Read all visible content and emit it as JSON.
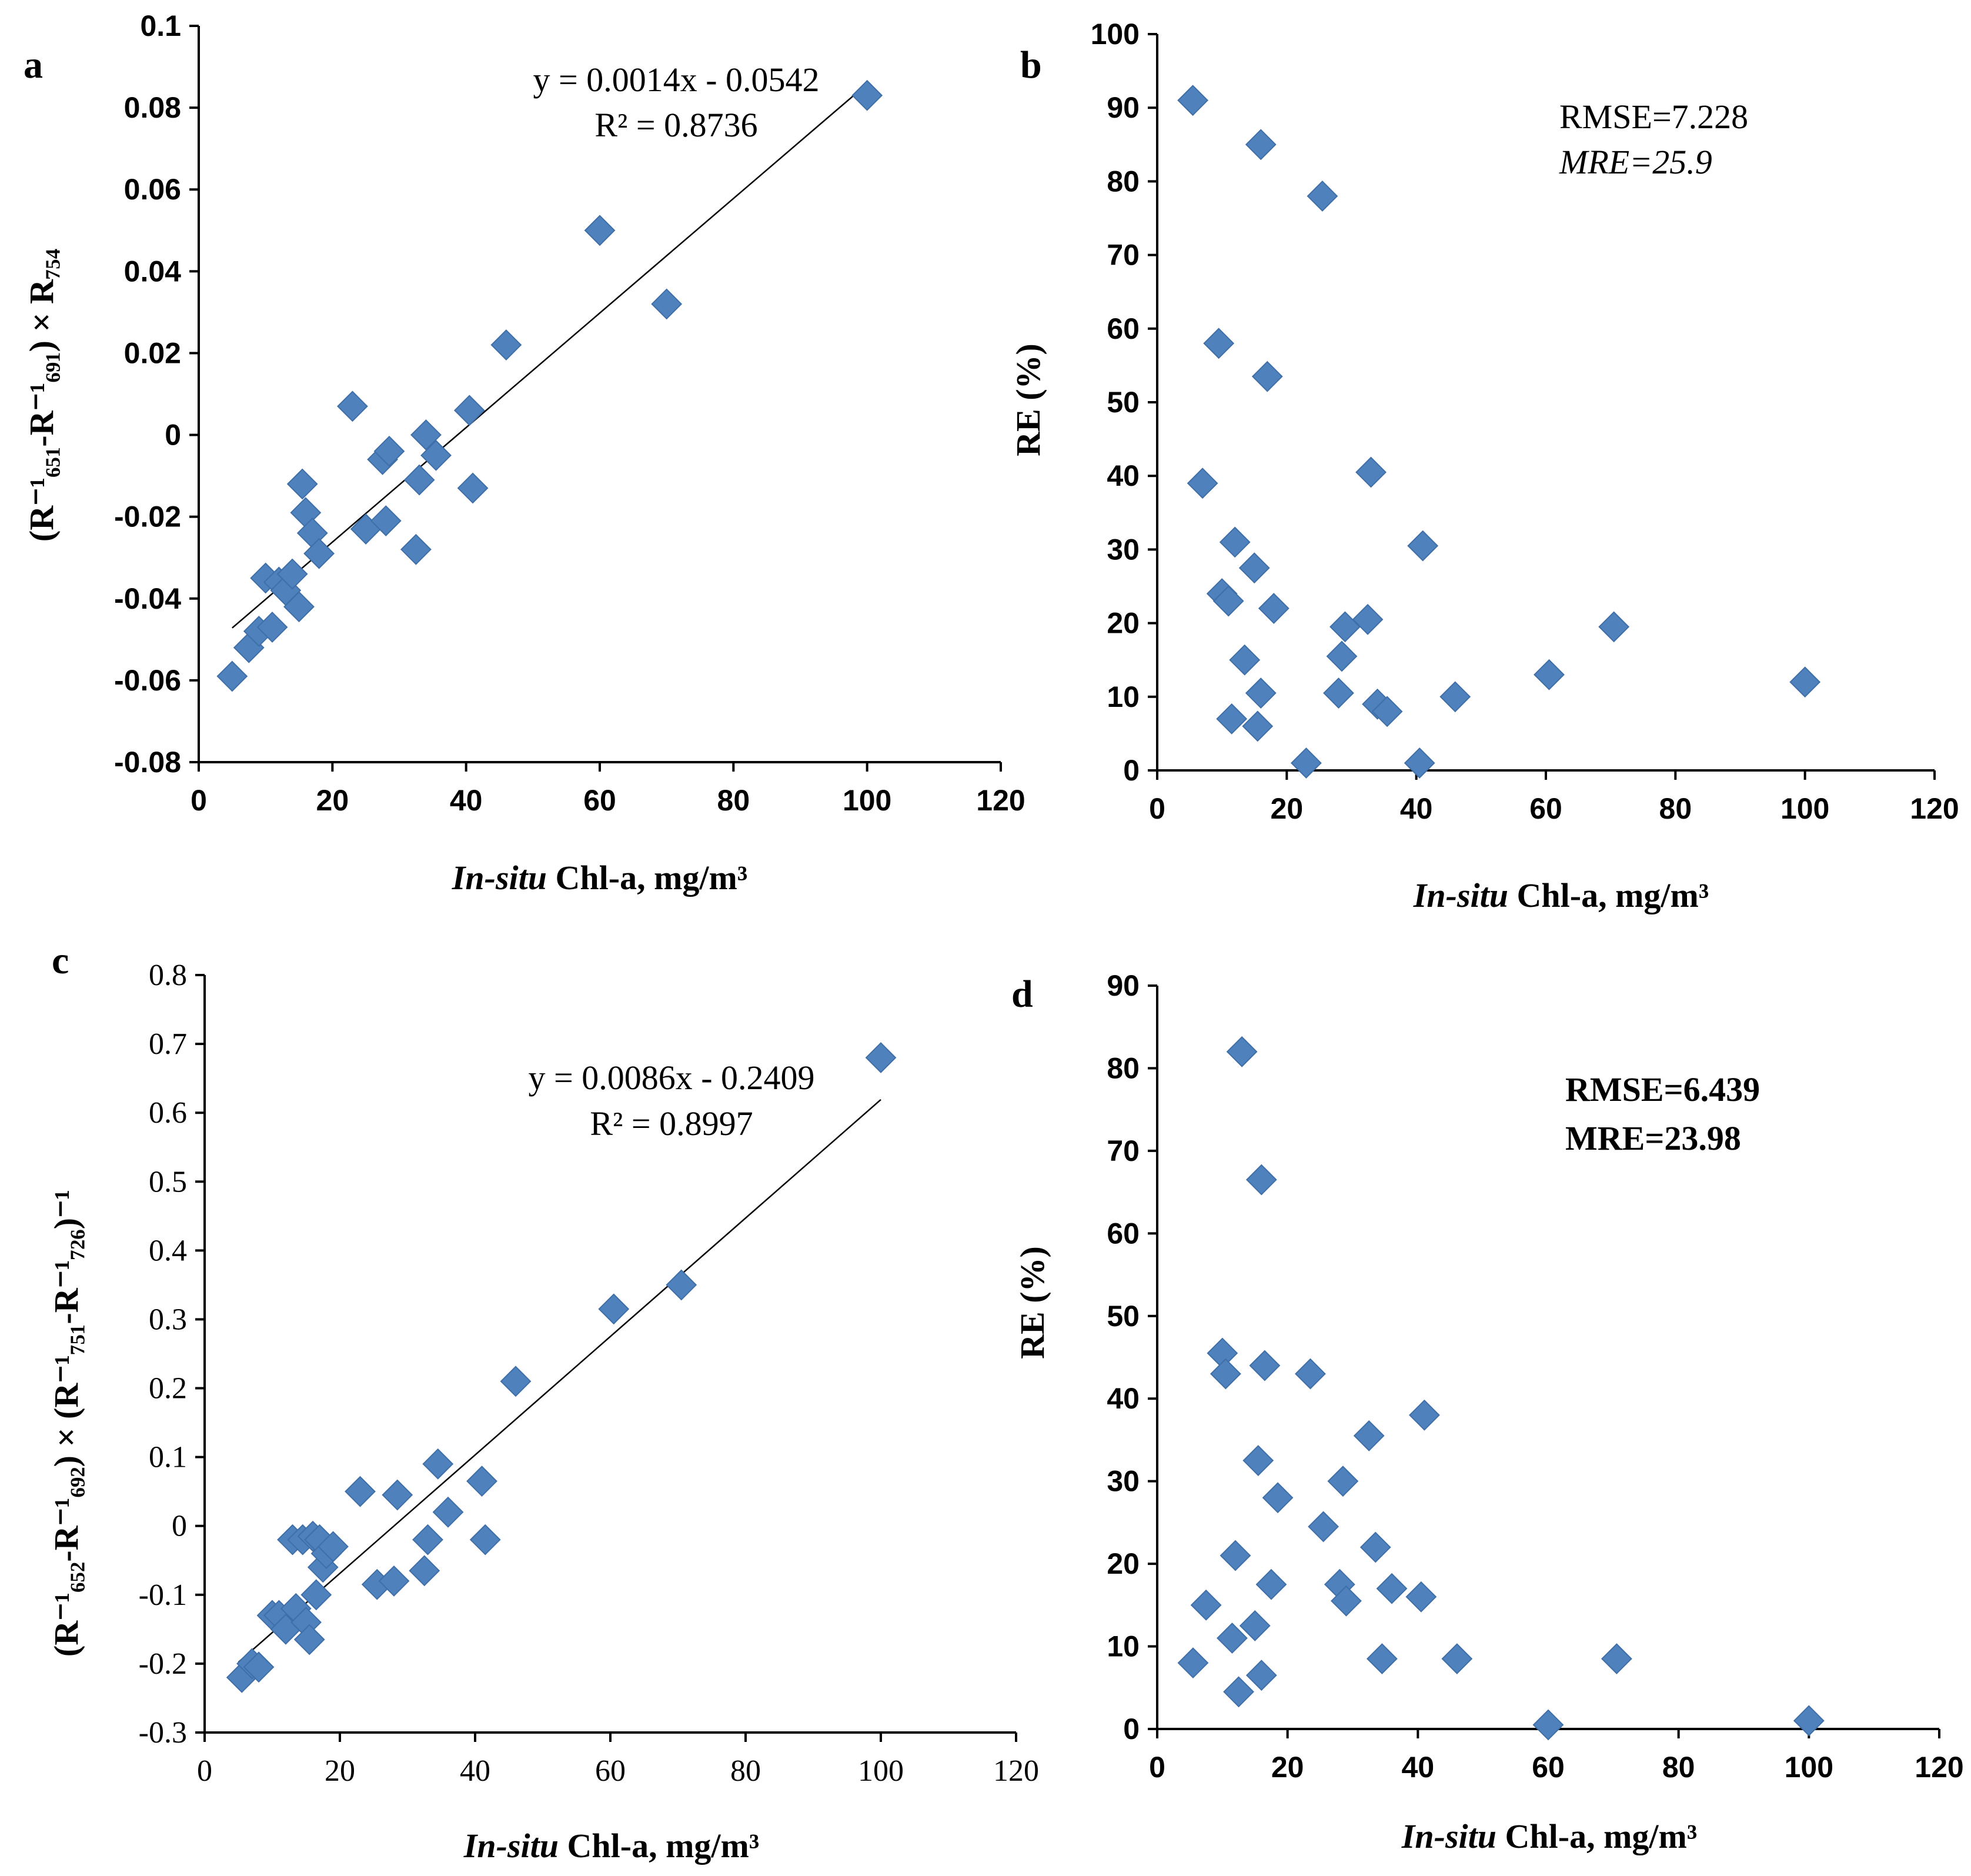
{
  "chart_data": [
    {
      "id": "a",
      "type": "scatter",
      "panel_label": "a",
      "xlabel_italic": "In-situ",
      "xlabel_rest": " Chl-a, mg/m³",
      "ylabel": "(R⁻¹₆₅₁-R⁻¹₆₉₁) × R₇₅₄",
      "xlim": [
        0,
        120
      ],
      "ylim": [
        -0.08,
        0.1
      ],
      "xticks": [
        0,
        20,
        40,
        60,
        80,
        100,
        120
      ],
      "yticks": [
        -0.08,
        -0.06,
        -0.04,
        -0.02,
        0,
        0.02,
        0.04,
        0.06,
        0.08,
        0.1
      ],
      "ytick_labels": [
        "-0.08",
        "-0.06",
        "-0.04",
        "-0.02",
        "0",
        "0.02",
        "0.04",
        "0.06",
        "0.08",
        "0.1"
      ],
      "equation": "y = 0.0014x - 0.0542",
      "r2": "R² = 0.8736",
      "trendline": {
        "slope": 0.0014,
        "intercept": -0.0542,
        "x_range": [
          5,
          100
        ]
      },
      "x": [
        5,
        7.5,
        9,
        10,
        11,
        12,
        13,
        14,
        15,
        15.5,
        16,
        17,
        18,
        23,
        25,
        27.5,
        28,
        28.5,
        32.5,
        33,
        34,
        35.5,
        40.5,
        41,
        46,
        60,
        70,
        100
      ],
      "y": [
        -0.059,
        -0.052,
        -0.048,
        -0.035,
        -0.047,
        -0.036,
        -0.038,
        -0.034,
        -0.042,
        -0.012,
        -0.019,
        -0.024,
        -0.029,
        0.007,
        -0.023,
        -0.006,
        -0.021,
        -0.004,
        -0.028,
        -0.011,
        0.0,
        -0.005,
        0.006,
        -0.013,
        0.022,
        0.05,
        0.032,
        0.083
      ]
    },
    {
      "id": "b",
      "type": "scatter",
      "panel_label": "b",
      "xlabel_italic": "In-situ",
      "xlabel_rest": " Chl-a, mg/m³",
      "ylabel": "RE (%)",
      "xlim": [
        0,
        120
      ],
      "ylim": [
        0,
        100
      ],
      "xticks": [
        0,
        20,
        40,
        60,
        80,
        100,
        120
      ],
      "yticks": [
        0,
        10,
        20,
        30,
        40,
        50,
        60,
        70,
        80,
        90,
        100
      ],
      "annotation_1": "RMSE=7.228",
      "annotation_2": "MRE=25.9",
      "x": [
        5.5,
        7,
        9.5,
        10,
        11,
        11.5,
        12,
        13.5,
        15,
        15.5,
        16,
        16,
        17,
        18,
        23,
        25.5,
        28,
        28.5,
        29,
        32.5,
        33,
        34,
        35.5,
        40.5,
        41,
        46,
        60.5,
        70.5,
        100
      ],
      "y": [
        91,
        39,
        58,
        24,
        23,
        7,
        31,
        15,
        27.5,
        6,
        10.5,
        85,
        53.5,
        22,
        1,
        78,
        10.5,
        15.5,
        19.5,
        20.5,
        40.5,
        9,
        8,
        1,
        30.5,
        10,
        13,
        19.5,
        12
      ]
    },
    {
      "id": "c",
      "type": "scatter",
      "panel_label": "c",
      "xlabel_italic": "In-situ",
      "xlabel_rest": " Chl-a, mg/m³",
      "ylabel": "(R⁻¹₆₅₂-R⁻¹₆₉₂) × (R⁻¹₇₅₁-R⁻¹₇₂₆)⁻¹",
      "xlim": [
        0,
        120
      ],
      "ylim": [
        -0.3,
        0.8
      ],
      "xticks": [
        0,
        20,
        40,
        60,
        80,
        100,
        120
      ],
      "yticks": [
        -0.3,
        -0.2,
        -0.1,
        0,
        0.1,
        0.2,
        0.3,
        0.4,
        0.5,
        0.6,
        0.7,
        0.8
      ],
      "ytick_labels": [
        "-0.3",
        "-0.2",
        "-0.1",
        "0",
        "0.1",
        "0.2",
        "0.3",
        "0.4",
        "0.5",
        "0.6",
        "0.7",
        "0.8"
      ],
      "equation": "y = 0.0086x - 0.2409",
      "r2": "R² = 0.8997",
      "trendline": {
        "slope": 0.0086,
        "intercept": -0.2409,
        "x_range": [
          5,
          100
        ]
      },
      "x": [
        5.5,
        7,
        8,
        10,
        11,
        12,
        13,
        13.5,
        14.5,
        15,
        15.5,
        16,
        16.5,
        17,
        17.5,
        18,
        19,
        23,
        25.5,
        28,
        28.5,
        32.5,
        33,
        34.5,
        36,
        41,
        41.5,
        46,
        60.5,
        70.5,
        100
      ],
      "y": [
        -0.22,
        -0.2,
        -0.205,
        -0.13,
        -0.13,
        -0.15,
        -0.02,
        -0.12,
        -0.02,
        -0.14,
        -0.165,
        -0.015,
        -0.1,
        -0.02,
        -0.06,
        -0.04,
        -0.03,
        0.05,
        -0.085,
        -0.08,
        0.045,
        -0.065,
        -0.02,
        0.09,
        0.02,
        0.065,
        -0.02,
        0.21,
        0.315,
        0.35,
        0.68
      ]
    },
    {
      "id": "d",
      "type": "scatter",
      "panel_label": "d",
      "xlabel_italic": "In-situ",
      "xlabel_rest": " Chl-a, mg/m³",
      "ylabel": "RE (%)",
      "xlim": [
        0,
        120
      ],
      "ylim": [
        0,
        90
      ],
      "xticks": [
        0,
        20,
        40,
        60,
        80,
        100,
        120
      ],
      "yticks": [
        0,
        10,
        20,
        30,
        40,
        50,
        60,
        70,
        80,
        90
      ],
      "annotation_1": "RMSE=6.439",
      "annotation_2": "MRE=23.98",
      "x": [
        5.5,
        7.5,
        10,
        10.5,
        11.5,
        12,
        12.5,
        13,
        15,
        15.5,
        16,
        16,
        16.5,
        17.5,
        18.5,
        23.5,
        25.5,
        28,
        28.5,
        29,
        32.5,
        33.5,
        34.5,
        36,
        40.5,
        41,
        46,
        60,
        70.5,
        100
      ],
      "y": [
        8,
        15,
        45.5,
        43,
        11,
        21,
        4.5,
        82,
        12.5,
        32.5,
        66.5,
        6.5,
        44,
        17.5,
        28,
        43,
        24.5,
        17.5,
        30,
        15.5,
        35.5,
        22,
        8.5,
        17,
        16,
        38,
        8.5,
        0.5,
        8.5,
        1
      ]
    }
  ]
}
